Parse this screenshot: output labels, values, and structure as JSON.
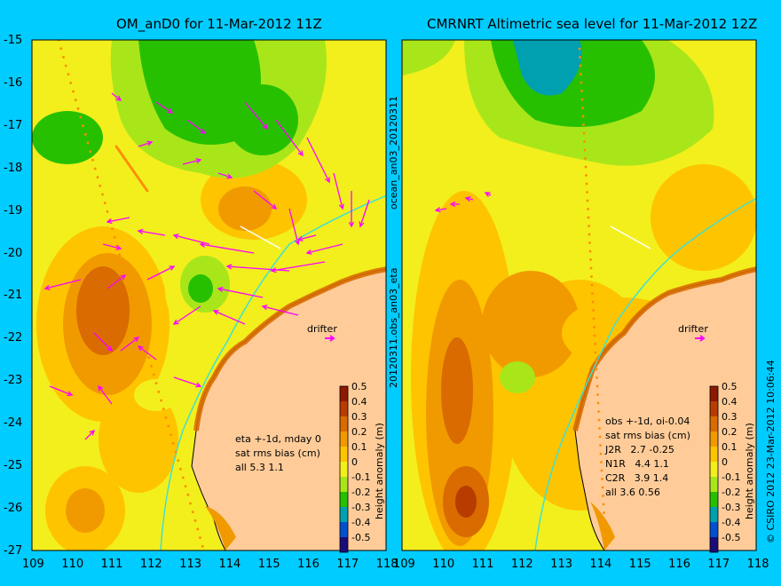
{
  "panels": [
    {
      "title": "OM_anD0 for 11-Mar-2012 11Z",
      "drifter_label": "drifter",
      "annotation": [
        "eta +-1d, mday 0",
        "sat rms bias (cm)",
        "all 5.3 1.1"
      ]
    },
    {
      "title": "CMRNRT Altimetric sea level  for 11-Mar-2012 12Z",
      "drifter_label": "drifter",
      "annotation": [
        "obs +-1d, oi-0.04",
        "sat rms bias (cm)",
        "J2R   2.7 -0.25",
        "N1R   4.4 1.1",
        "C2R   3.9 1.4",
        "all 3.6 0.56"
      ]
    }
  ],
  "center_labels": {
    "top": "ocean_an03_20120311",
    "bottom": "20120311.obs_an03_eta"
  },
  "colorbar": {
    "label": "height anomaly (m)",
    "ticks": [
      "0.5",
      "0.4",
      "0.3",
      "0.2",
      "0.1",
      "0",
      "-0.1",
      "-0.2",
      "-0.3",
      "-0.4",
      "-0.5"
    ],
    "colors": [
      "#8b1a00",
      "#b83c00",
      "#d96b00",
      "#f09a00",
      "#ffc400",
      "#f2ef1d",
      "#a8e61a",
      "#27c000",
      "#00a0b0",
      "#0050d0",
      "#1a0c78"
    ]
  },
  "axes": {
    "x_ticks": [
      "109",
      "110",
      "111",
      "112",
      "113",
      "114",
      "115",
      "116",
      "117",
      "118"
    ],
    "y_ticks": [
      "-15",
      "-16",
      "-17",
      "-18",
      "-19",
      "-20",
      "-21",
      "-22",
      "-23",
      "-24",
      "-25",
      "-26",
      "-27"
    ]
  },
  "credit": "© CSIRO 2012   23-Mar-2012 10:06:44",
  "colors": {
    "background": "#00ccff",
    "land": "#ffcc99",
    "vector": "#ff00ff"
  }
}
